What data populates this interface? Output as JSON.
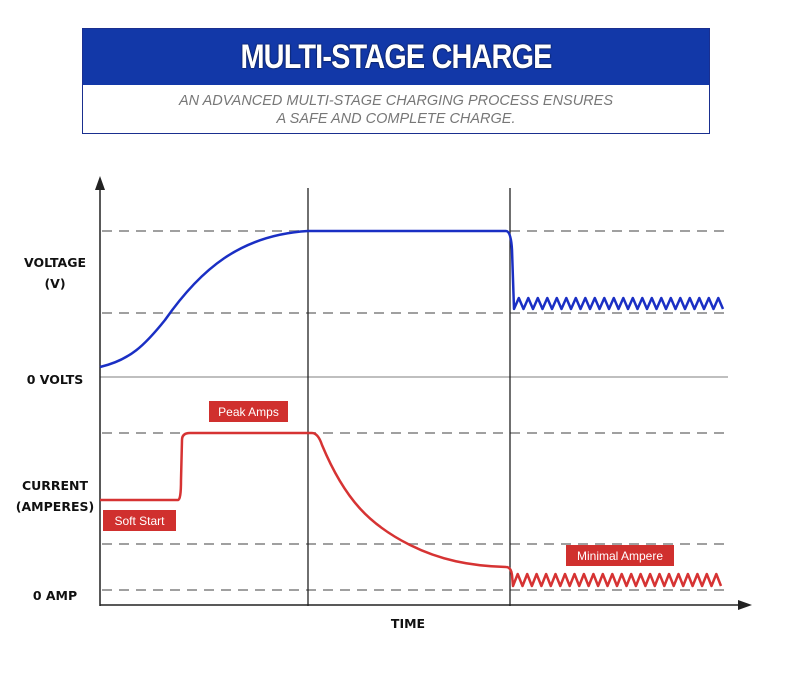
{
  "header": {
    "title": "MULTI-STAGE CHARGE",
    "subtitle_line1": "AN ADVANCED MULTI-STAGE  CHARGING PROCESS ENSURES",
    "subtitle_line2": "A SAFE AND COMPLETE CHARGE."
  },
  "axis_labels": {
    "voltage_line1": "VOLTAGE",
    "voltage_line2": "(V)",
    "zero_volts": "0 VOLTS",
    "current_line1": "CURRENT",
    "current_line2": "(AMPERES)",
    "zero_amp": "0 AMP",
    "time": "TIME"
  },
  "annotations": {
    "peak_amps": "Peak Amps",
    "soft_start": "Soft Start",
    "minimal_ampere": "Minimal Ampere"
  },
  "colors": {
    "title_bar": "#1238a8",
    "voltage_line": "#1a2fc4",
    "current_line": "#d63333",
    "tag_bg": "#d0302e",
    "dash": "#a0a0a0"
  }
}
